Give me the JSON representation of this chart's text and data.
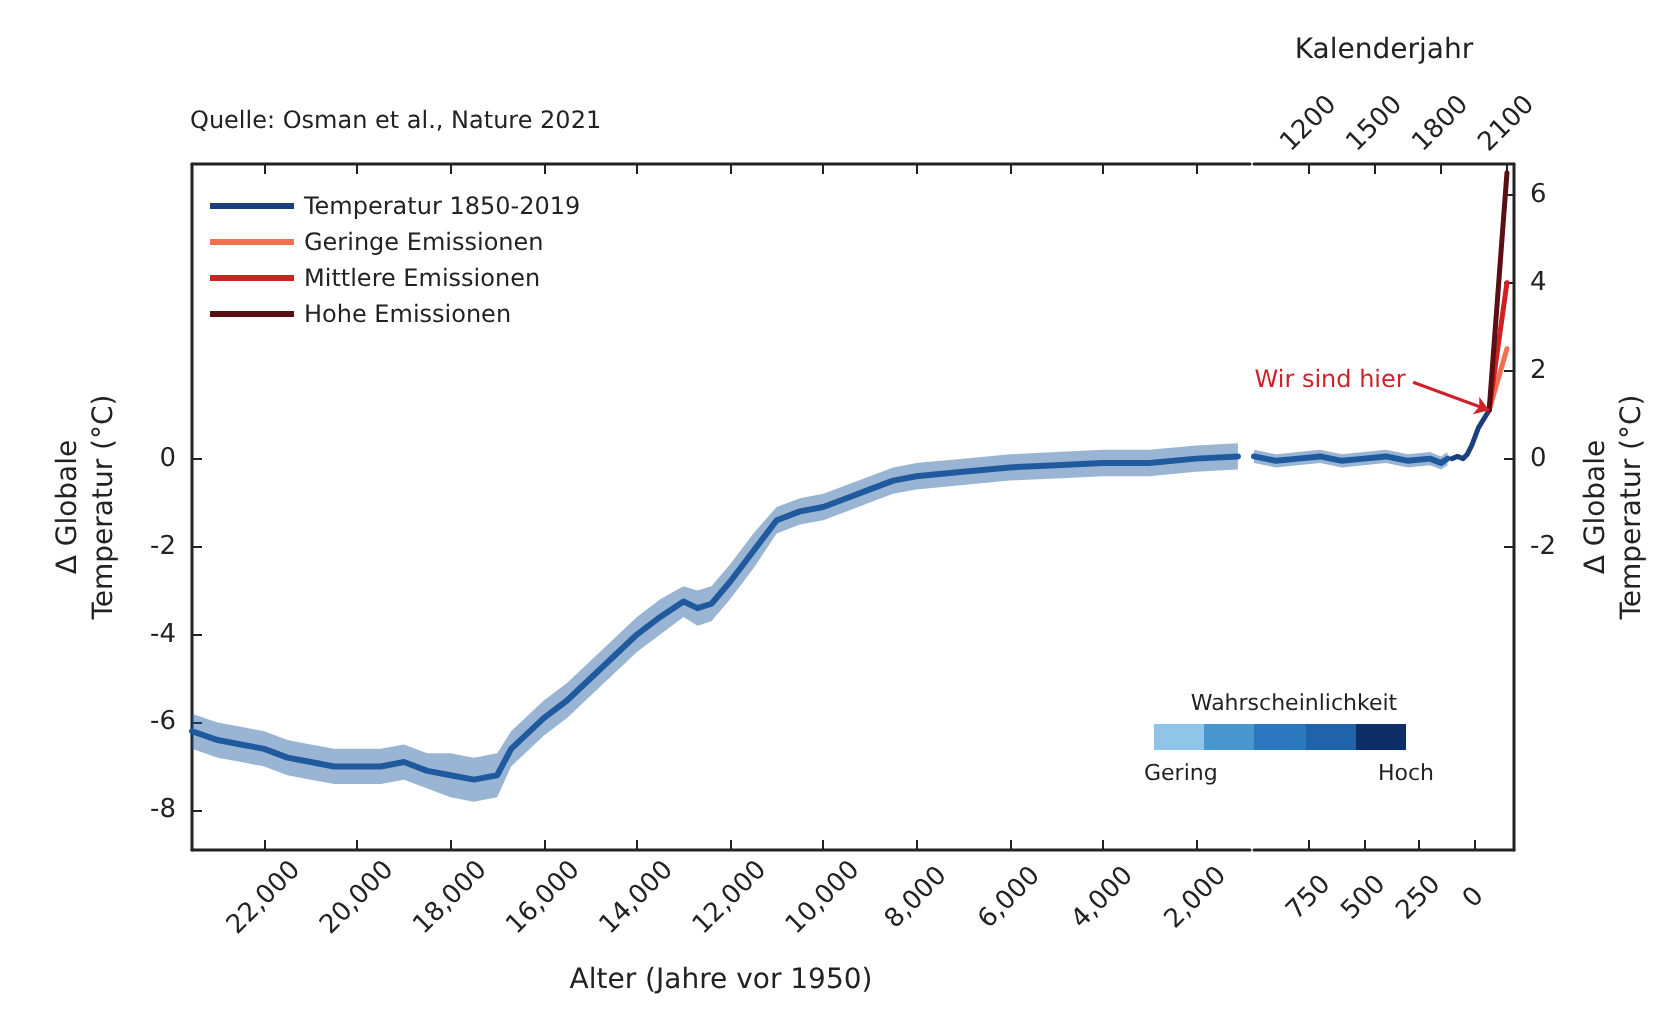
{
  "chart_data": [
    {
      "type": "line",
      "xlabel": "Alter (Jahre vor 1950)",
      "ylabel": "Δ Globale\nTemperatur (°C)",
      "xlim": [
        23550,
        840
      ],
      "xticks": [
        {
          "value": 22000,
          "label": "22,000"
        },
        {
          "value": 20000,
          "label": "20,000"
        },
        {
          "value": 18000,
          "label": "18,000"
        },
        {
          "value": 16000,
          "label": "16,000"
        },
        {
          "value": 14000,
          "label": "14,000"
        },
        {
          "value": 12000,
          "label": "12,000"
        },
        {
          "value": 10000,
          "label": "10,000"
        },
        {
          "value": 8000,
          "label": "8,000"
        },
        {
          "value": 6000,
          "label": "6,000"
        },
        {
          "value": 4000,
          "label": "4,000"
        },
        {
          "value": 2000,
          "label": "2,000"
        }
      ],
      "ylim": [
        -8.9,
        6.7
      ],
      "yticks": [
        -8,
        -6,
        -4,
        -2,
        0
      ],
      "grid": false,
      "marker": "none",
      "line_style": "solid",
      "annotations": [
        "Quelle: Osman et al., Nature 2021",
        "Wahrscheinlichkeit",
        "Gering",
        "Hoch"
      ],
      "series": [
        {
          "color": "#1f5a9e",
          "x": [
            23550,
            23000,
            22500,
            22000,
            21500,
            21000,
            20500,
            20000,
            19500,
            19000,
            18500,
            18000,
            17500,
            17000,
            16700,
            16000,
            15500,
            15000,
            14500,
            14000,
            13500,
            13000,
            12700,
            12400,
            12000,
            11500,
            11000,
            10500,
            10000,
            9500,
            9000,
            8500,
            8000,
            7000,
            6000,
            5000,
            4000,
            3000,
            2000,
            1100
          ],
          "values": [
            -6.2,
            -6.4,
            -6.5,
            -6.6,
            -6.8,
            -6.9,
            -7.0,
            -7.0,
            -7.0,
            -6.9,
            -7.1,
            -7.2,
            -7.3,
            -7.2,
            -6.6,
            -5.9,
            -5.5,
            -5.0,
            -4.5,
            -4.0,
            -3.6,
            -3.25,
            -3.4,
            -3.3,
            -2.8,
            -2.1,
            -1.4,
            -1.2,
            -1.1,
            -0.9,
            -0.7,
            -0.5,
            -0.4,
            -0.3,
            -0.2,
            -0.15,
            -0.1,
            -0.1,
            0.0,
            0.05
          ],
          "lower": [
            -6.6,
            -6.8,
            -6.9,
            -7.0,
            -7.2,
            -7.3,
            -7.4,
            -7.4,
            -7.4,
            -7.3,
            -7.5,
            -7.7,
            -7.8,
            -7.7,
            -7.0,
            -6.3,
            -5.9,
            -5.4,
            -4.9,
            -4.4,
            -4.0,
            -3.6,
            -3.8,
            -3.7,
            -3.2,
            -2.5,
            -1.7,
            -1.5,
            -1.4,
            -1.2,
            -1.0,
            -0.8,
            -0.7,
            -0.6,
            -0.5,
            -0.45,
            -0.4,
            -0.4,
            -0.3,
            -0.25
          ],
          "upper": [
            -5.8,
            -6.0,
            -6.1,
            -6.2,
            -6.4,
            -6.5,
            -6.6,
            -6.6,
            -6.6,
            -6.5,
            -6.7,
            -6.7,
            -6.8,
            -6.7,
            -6.2,
            -5.5,
            -5.1,
            -4.6,
            -4.1,
            -3.6,
            -3.2,
            -2.9,
            -3.0,
            -2.9,
            -2.4,
            -1.7,
            -1.1,
            -0.9,
            -0.8,
            -0.6,
            -0.4,
            -0.2,
            -0.1,
            0.0,
            0.1,
            0.15,
            0.2,
            0.2,
            0.3,
            0.35
          ]
        }
      ]
    },
    {
      "type": "line",
      "ylabel": "Δ Globale\nTemperatur (°C)",
      "x2label": "Kalenderjahr",
      "xlim": [
        1000,
        -182
      ],
      "xticks": [
        750,
        500,
        250,
        0
      ],
      "x2lim": [
        950,
        2132
      ],
      "x2ticks": [
        1200,
        1500,
        1800,
        2100
      ],
      "ylim": [
        -8.9,
        6.7
      ],
      "yticks": [
        -2,
        0,
        2,
        4,
        6
      ],
      "grid": false,
      "marker": "none",
      "line_style": "solid",
      "legend": "top left",
      "annotations": [
        {
          "text": "Wir sind hier",
          "x": -69,
          "y": 1.1
        }
      ],
      "series": [
        {
          "color": "#1f5a9e",
          "x": [
            1000,
            900,
            800,
            700,
            600,
            500,
            400,
            300,
            200,
            150,
            120
          ],
          "values": [
            0.05,
            -0.05,
            0.0,
            0.05,
            -0.05,
            0.0,
            0.05,
            -0.05,
            0.0,
            -0.1,
            0.0
          ],
          "lower": [
            -0.1,
            -0.2,
            -0.15,
            -0.1,
            -0.2,
            -0.15,
            -0.1,
            -0.2,
            -0.15,
            -0.25,
            -0.15
          ],
          "upper": [
            0.2,
            0.1,
            0.15,
            0.2,
            0.1,
            0.15,
            0.2,
            0.1,
            0.15,
            0.05,
            0.15
          ]
        },
        {
          "name": "Temperatur 1850-2019",
          "color": "#1c3f7e",
          "x": [
            100,
            75,
            50,
            30,
            10,
            -20,
            -69
          ],
          "values": [
            0.0,
            0.05,
            0.0,
            0.1,
            0.3,
            0.7,
            1.1
          ]
        },
        {
          "name": "Geringe Emissionen",
          "color": "#f07050",
          "x": [
            -69,
            -150
          ],
          "values": [
            1.1,
            2.5
          ]
        },
        {
          "name": "Mittlere Emissionen",
          "color": "#d02020",
          "x": [
            -69,
            -150
          ],
          "values": [
            1.1,
            4.0
          ]
        },
        {
          "name": "Hohe Emissionen",
          "color": "#5a0f14",
          "x": [
            -69,
            -150
          ],
          "values": [
            1.1,
            6.5
          ]
        }
      ]
    }
  ]
}
